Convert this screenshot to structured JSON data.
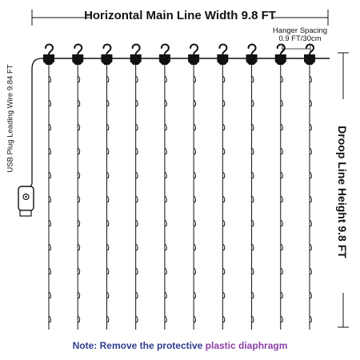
{
  "labels": {
    "horizontal_width": "Horizontal Main Line Width 9.8 FT",
    "hanger_spacing_line1": "Hanger Spacing",
    "hanger_spacing_line2": "0.9 FT/30cm",
    "leading_wire": "USB Plug Leading Wire 9.84 FT",
    "drop_height": "Droop Line Height 9.8 FT"
  },
  "note": {
    "prefix": "Note: Remove the protective",
    "highlight": "plastic diaphragm"
  },
  "structure": {
    "hanger_count": 10,
    "bulbs_per_drop": 11
  },
  "colors": {
    "line": "#111111",
    "note_blue": "#2e3d8f",
    "note_purple": "#8e3fa8"
  },
  "icons": {
    "hanger": "hook-clip-icon",
    "plug": "usb-plug-icon",
    "bulb": "led-bulb-icon"
  }
}
